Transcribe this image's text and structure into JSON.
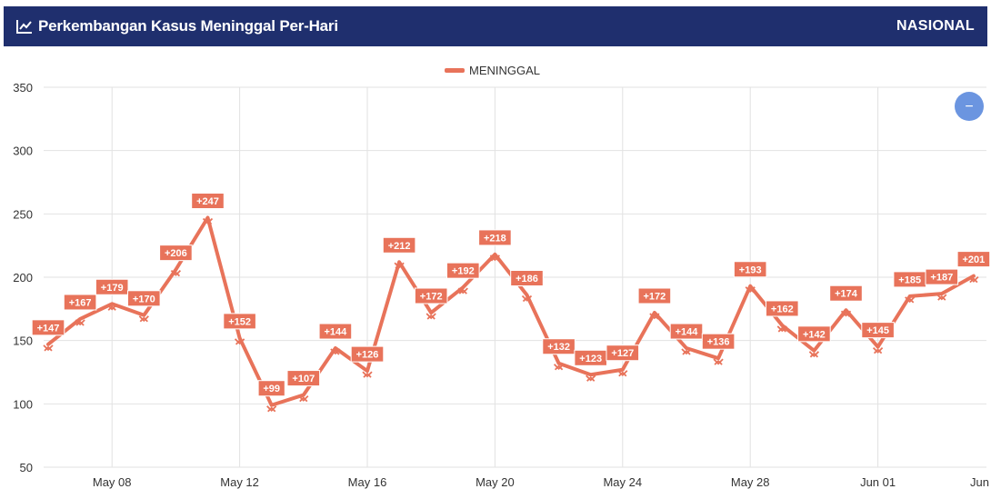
{
  "header": {
    "title": "Perkembangan Kasus Meninggal Per-Hari",
    "title_icon": "line-chart-icon",
    "region_label": "NASIONAL"
  },
  "zoom_button": {
    "icon": "minus-icon",
    "label": "−"
  },
  "colors": {
    "header_bg": "#1f2f6e",
    "series": "#e8735a",
    "zoom_button": "#6b95e0",
    "grid": "#e2e2e2"
  },
  "chart_data": {
    "type": "line",
    "title": "",
    "xlabel": "",
    "ylabel": "",
    "ylim": [
      50,
      350
    ],
    "yticks": [
      50,
      100,
      150,
      200,
      250,
      300,
      350
    ],
    "grid": true,
    "legend": "top-center",
    "x": [
      "May 06",
      "May 07",
      "May 08",
      "May 09",
      "May 10",
      "May 11",
      "May 12",
      "May 13",
      "May 14",
      "May 15",
      "May 16",
      "May 17",
      "May 18",
      "May 19",
      "May 20",
      "May 21",
      "May 22",
      "May 23",
      "May 24",
      "May 25",
      "May 26",
      "May 27",
      "May 28",
      "May 29",
      "May 30",
      "May 31",
      "Jun 01",
      "Jun 02",
      "Jun 03",
      "Jun 04"
    ],
    "xtick_labels": [
      "May 08",
      "May 12",
      "May 16",
      "May 20",
      "May 24",
      "May 28",
      "Jun 01",
      "Jun"
    ],
    "series": [
      {
        "name": "MENINGGAL",
        "values": [
          147,
          167,
          179,
          170,
          206,
          247,
          152,
          99,
          107,
          144,
          126,
          212,
          172,
          192,
          218,
          186,
          132,
          123,
          127,
          172,
          144,
          136,
          193,
          162,
          142,
          174,
          145,
          185,
          187,
          201
        ],
        "labels": [
          "+147",
          "+167",
          "+179",
          "+170",
          "+206",
          "+247",
          "+152",
          "+99",
          "+107",
          "+144",
          "+126",
          "+212",
          "+172",
          "+192",
          "+218",
          "+186",
          "+132",
          "+123",
          "+127",
          "+172",
          "+144",
          "+136",
          "+193",
          "+162",
          "+142",
          "+174",
          "+145",
          "+185",
          "+187",
          "+201"
        ]
      }
    ]
  }
}
